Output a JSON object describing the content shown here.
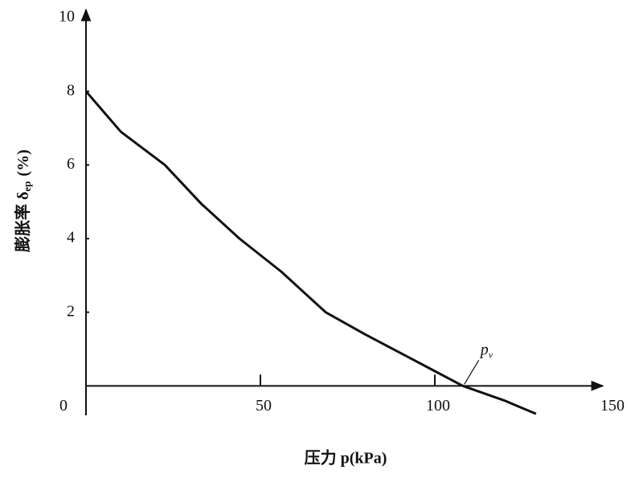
{
  "chart_data": {
    "type": "line",
    "x_label": "压力 p(kPa)",
    "y_label": {
      "text": "膨胀率 δ",
      "subscript": "ep",
      "unit": "(%)"
    },
    "annotation": {
      "text": "p",
      "subscript": "v"
    },
    "x": [
      0,
      10,
      22.6,
      33,
      44,
      56,
      68.7,
      80,
      90,
      100,
      108,
      120,
      129
    ],
    "series": [
      {
        "name": "膨胀率",
        "color": "#111111",
        "values": [
          8,
          6.9,
          6,
          4.95,
          4,
          3.1,
          2,
          1.4,
          0.9,
          0.4,
          0,
          -0.4,
          -0.76
        ]
      }
    ],
    "xlim": [
      0,
      150
    ],
    "ylim": [
      -0.8,
      10
    ],
    "xticks": [
      0,
      50,
      100,
      150
    ],
    "yticks": [
      2,
      4,
      6,
      8,
      10
    ],
    "grid": false
  }
}
